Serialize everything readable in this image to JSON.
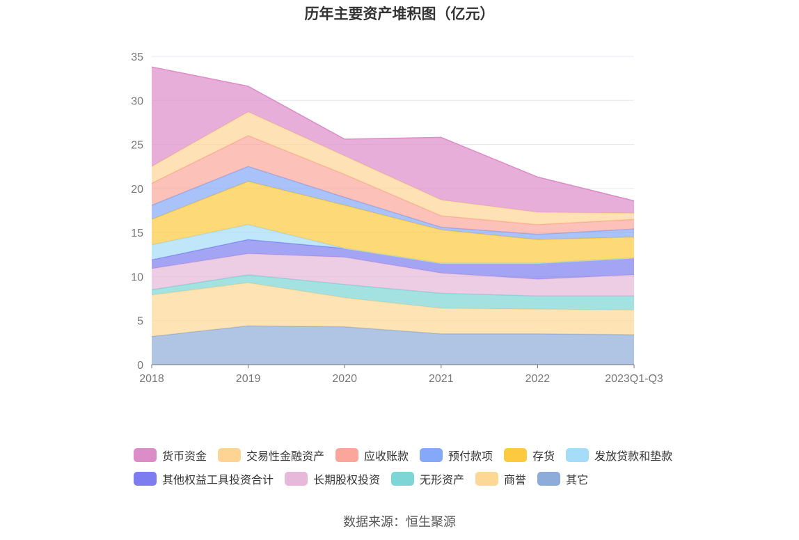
{
  "chart_data": {
    "type": "area",
    "stacked": true,
    "title": "历年主要资产堆积图（亿元）",
    "categories": [
      "2018",
      "2019",
      "2020",
      "2021",
      "2022",
      "2023Q1-Q3"
    ],
    "ylim": [
      0,
      35
    ],
    "yticks": [
      "0",
      "5",
      "10",
      "15",
      "20",
      "25",
      "30",
      "35"
    ],
    "grid": true,
    "legend_position": "bottom",
    "series": [
      {
        "name": "其它",
        "color": "#8eacd9",
        "values": [
          3.2,
          4.4,
          4.3,
          3.5,
          3.5,
          3.4
        ]
      },
      {
        "name": "商誉",
        "color": "#fdd796",
        "values": [
          4.7,
          4.9,
          3.3,
          2.9,
          2.8,
          2.8
        ]
      },
      {
        "name": "无形资产",
        "color": "#7dd5d5",
        "values": [
          0.6,
          0.9,
          1.5,
          1.7,
          1.5,
          1.6
        ]
      },
      {
        "name": "长期股权投资",
        "color": "#e6b8d9",
        "values": [
          2.4,
          2.4,
          3.1,
          2.3,
          1.9,
          2.4
        ]
      },
      {
        "name": "其他权益工具投资合计",
        "color": "#7d7df0",
        "values": [
          1.0,
          1.6,
          1.0,
          1.1,
          1.8,
          1.9
        ]
      },
      {
        "name": "发放贷款和垫款",
        "color": "#a5dcf7",
        "values": [
          1.7,
          1.7,
          0.0,
          0.0,
          0.0,
          0.0
        ]
      },
      {
        "name": "存货",
        "color": "#fdc93e",
        "values": [
          2.9,
          4.9,
          4.9,
          3.8,
          2.7,
          2.4
        ]
      },
      {
        "name": "预付款项",
        "color": "#85a8f8",
        "values": [
          1.6,
          1.7,
          0.9,
          0.3,
          0.6,
          0.9
        ]
      },
      {
        "name": "应收账款",
        "color": "#fba69a",
        "values": [
          2.5,
          3.5,
          2.6,
          1.3,
          1.1,
          1.1
        ]
      },
      {
        "name": "交易性金融资产",
        "color": "#fed494",
        "values": [
          1.9,
          2.7,
          2.1,
          1.8,
          1.4,
          0.7
        ]
      },
      {
        "name": "货币资金",
        "color": "#dc8cc7",
        "values": [
          11.3,
          2.9,
          1.9,
          7.1,
          4.0,
          1.4
        ]
      }
    ]
  },
  "legend": {
    "row1": [
      "货币资金",
      "交易性金融资产",
      "应收账款",
      "预付款项",
      "存货",
      "发放贷款和垫款"
    ],
    "row2": [
      "其他权益工具投资合计",
      "长期股权投资",
      "无形资产",
      "商誉",
      "其它"
    ]
  },
  "footer": {
    "source": "数据来源：恒生聚源"
  }
}
